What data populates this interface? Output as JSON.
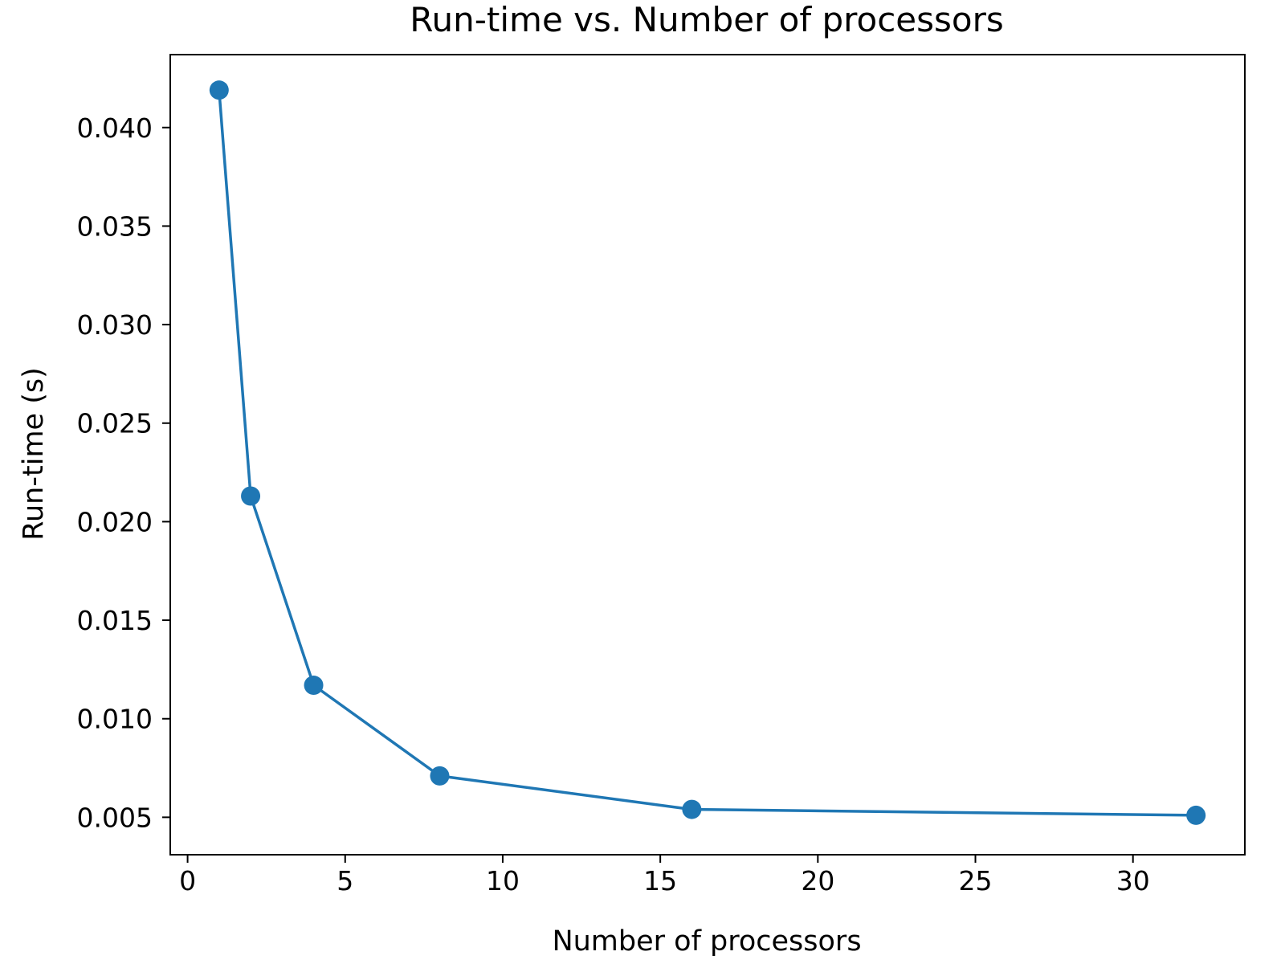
{
  "chart_data": {
    "type": "line",
    "title": "Run-time vs. Number of processors",
    "xlabel": "Number of processors",
    "ylabel": "Run-time (s)",
    "x": [
      1,
      2,
      4,
      8,
      16,
      32
    ],
    "series": [
      {
        "values": [
          0.0419,
          0.0213,
          0.0117,
          0.0071,
          0.0054,
          0.0051
        ],
        "color": "#1f77b4",
        "marker": "circle"
      }
    ],
    "xlim": [
      -0.55,
      33.55
    ],
    "ylim": [
      0.0031,
      0.0437
    ],
    "xticks": [
      0,
      5,
      10,
      15,
      20,
      25,
      30
    ],
    "xtick_labels": [
      "0",
      "5",
      "10",
      "15",
      "20",
      "25",
      "30"
    ],
    "yticks": [
      0.005,
      0.01,
      0.015,
      0.02,
      0.025,
      0.03,
      0.035,
      0.04
    ],
    "ytick_labels": [
      "0.005",
      "0.010",
      "0.015",
      "0.020",
      "0.025",
      "0.030",
      "0.035",
      "0.040"
    ],
    "grid": false,
    "legend": false
  }
}
